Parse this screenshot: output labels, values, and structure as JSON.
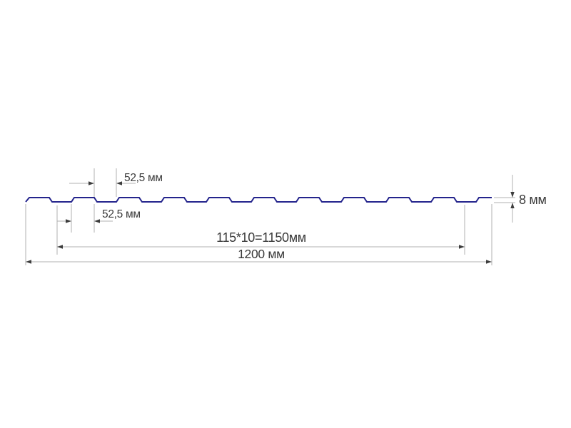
{
  "diagram": {
    "type": "profile-sheet-cross-section-drawing",
    "labels": {
      "valley_width": "52,5 мм",
      "rib_width": "52,5 мм",
      "working_width": "115*10=1150мм",
      "overall_width": "1200 мм",
      "profile_height": "8 мм"
    },
    "values": {
      "valley_width_mm": 52.5,
      "rib_top_width_mm": 52.5,
      "rib_pitch_mm": 115,
      "rib_count": 10,
      "working_width_mm": 1150,
      "overall_width_mm": 1200,
      "profile_height_mm": 8
    },
    "colors": {
      "profile_line": "#24248c",
      "dimension_line": "#b0b0b0",
      "arrowhead": "#3d3d3d",
      "label_text": "#3a3a3a",
      "background": "#ffffff"
    }
  }
}
